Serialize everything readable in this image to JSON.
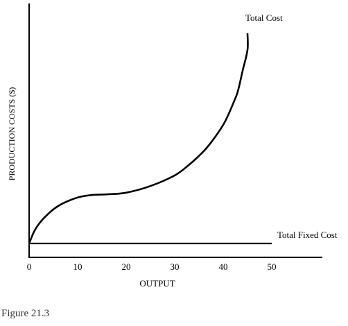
{
  "chart_data": {
    "type": "line",
    "xlabel": "OUTPUT",
    "ylabel": "PRODUCTION COSTS ($)",
    "x_ticks": [
      "0",
      "10",
      "20",
      "30",
      "40",
      "50"
    ],
    "xlim": [
      0,
      55
    ],
    "y_ticks_shown": false,
    "grid": false,
    "series": [
      {
        "name": "Total Cost",
        "x": [
          0,
          1,
          2,
          3,
          5,
          7,
          10,
          13,
          16,
          20,
          25,
          30,
          33,
          36,
          38,
          40,
          41,
          42,
          43,
          44,
          45,
          45
        ],
        "y": [
          0.3,
          0.86,
          1.23,
          1.51,
          1.94,
          2.23,
          2.51,
          2.63,
          2.66,
          2.74,
          3.06,
          3.57,
          4.09,
          4.74,
          5.31,
          6.0,
          6.46,
          7.0,
          7.6,
          8.6,
          9.6,
          10.4
        ]
      },
      {
        "name": "Total Fixed Cost",
        "x": [
          0,
          50
        ],
        "y": [
          0.3,
          0.3
        ]
      }
    ]
  },
  "caption": "Figure 21.3"
}
